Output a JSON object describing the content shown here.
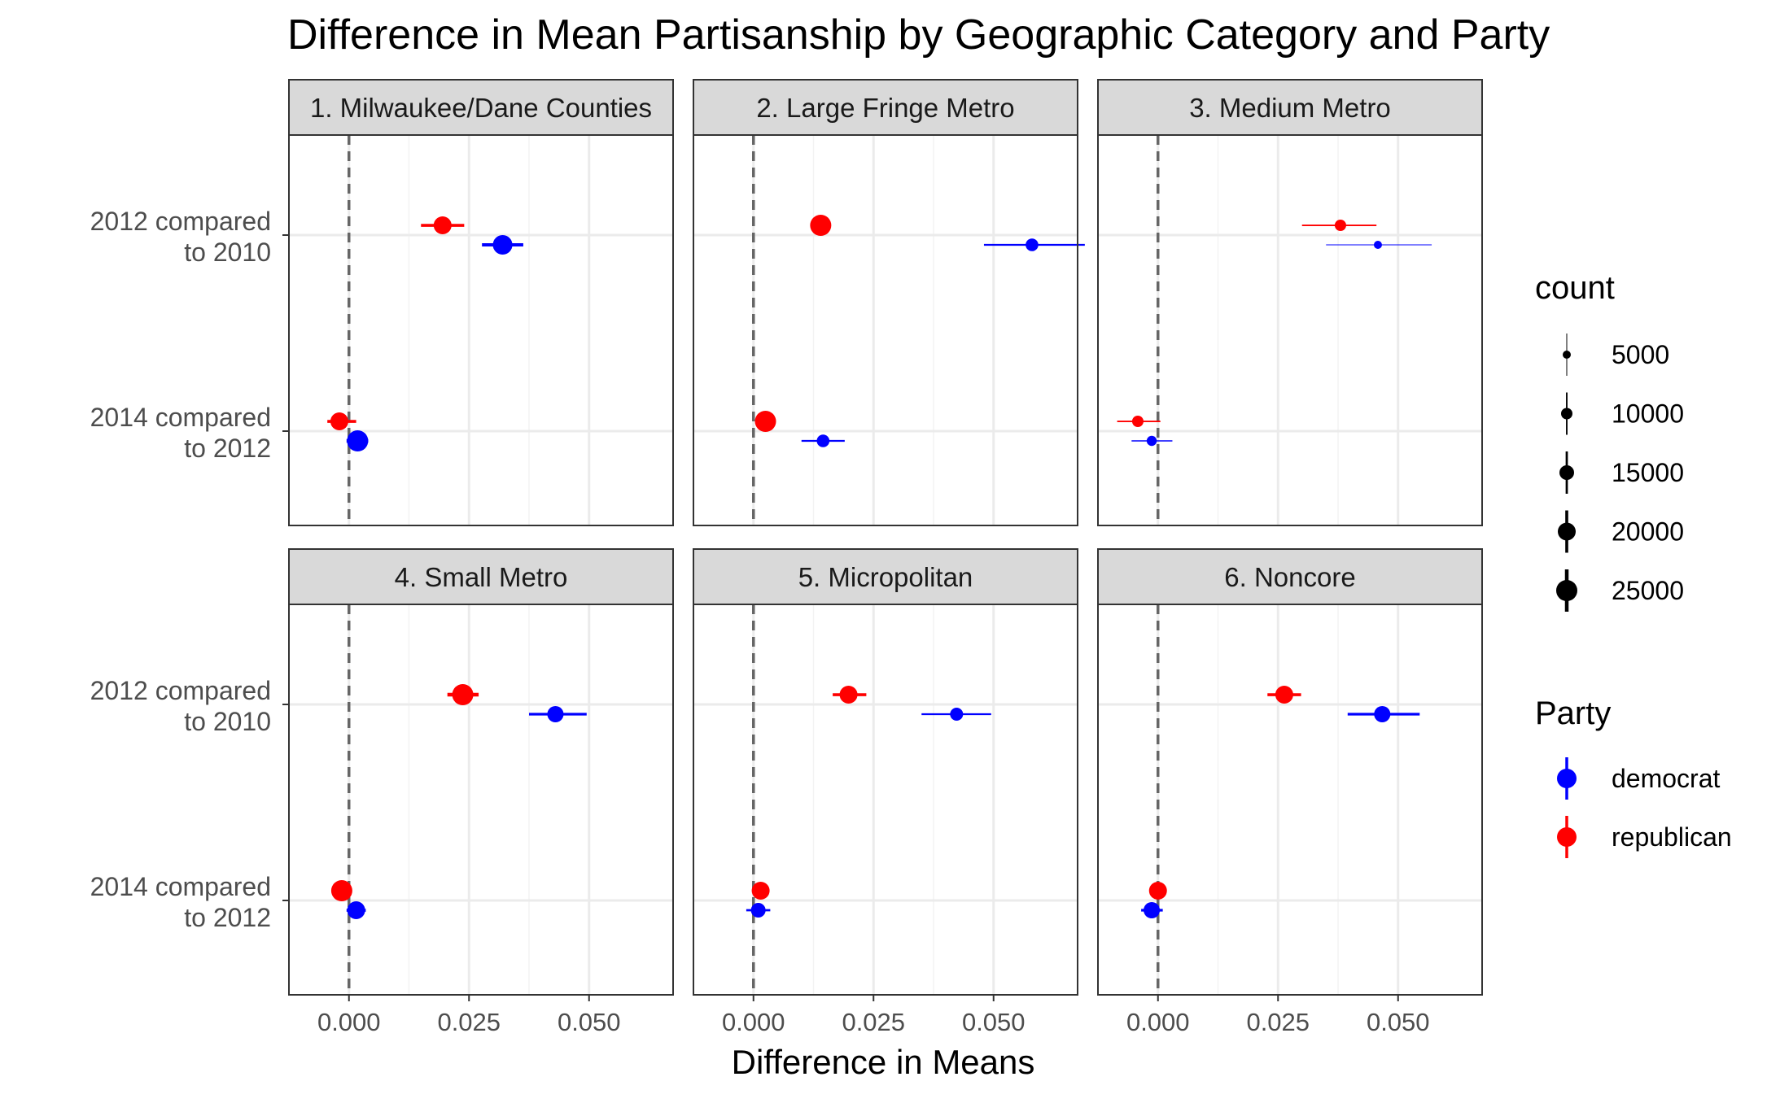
{
  "chart_data": {
    "type": "scatter",
    "variant": "faceted point-range (estimate with interval)",
    "title": "Difference in Mean Partisanship by Geographic Category and Party",
    "xlabel": "Difference in Means",
    "ylabel": "",
    "categories": [
      "2012 compared\nto 2010",
      "2014 compared\nto 2012"
    ],
    "x_ticks": [
      0.0,
      0.025,
      0.05
    ],
    "x_tick_labels": [
      "0.000",
      "0.025",
      "0.050"
    ],
    "xlim": [
      -0.0125,
      0.0675
    ],
    "reference_line": 0,
    "grid": true,
    "facets": [
      {
        "label": "1. Milwaukee/Dane Counties",
        "points": [
          {
            "comparison": "2012 compared\nto 2010",
            "party": "republican",
            "estimate": 0.0195,
            "low": 0.015,
            "high": 0.024,
            "count": 20000
          },
          {
            "comparison": "2012 compared\nto 2010",
            "party": "democrat",
            "estimate": 0.032,
            "low": 0.0277,
            "high": 0.0363,
            "count": 22500
          },
          {
            "comparison": "2014 compared\nto 2012",
            "party": "republican",
            "estimate": -0.002,
            "low": -0.0045,
            "high": 0.0015,
            "count": 20000
          },
          {
            "comparison": "2014 compared\nto 2012",
            "party": "democrat",
            "estimate": 0.0018,
            "low": -0.0005,
            "high": 0.004,
            "count": 25000
          }
        ]
      },
      {
        "label": "2. Large Fringe Metro",
        "points": [
          {
            "comparison": "2012 compared\nto 2010",
            "party": "republican",
            "estimate": 0.014,
            "low": 0.013,
            "high": 0.015,
            "count": 25000
          },
          {
            "comparison": "2012 compared\nto 2010",
            "party": "democrat",
            "estimate": 0.058,
            "low": 0.048,
            "high": 0.069,
            "count": 12000
          },
          {
            "comparison": "2014 compared\nto 2012",
            "party": "republican",
            "estimate": 0.0025,
            "low": 0.0015,
            "high": 0.0035,
            "count": 25000
          },
          {
            "comparison": "2014 compared\nto 2012",
            "party": "democrat",
            "estimate": 0.0145,
            "low": 0.01,
            "high": 0.019,
            "count": 12000
          }
        ]
      },
      {
        "label": "3. Medium Metro",
        "points": [
          {
            "comparison": "2012 compared\nto 2010",
            "party": "republican",
            "estimate": 0.038,
            "low": 0.03,
            "high": 0.0455,
            "count": 10000
          },
          {
            "comparison": "2012 compared\nto 2010",
            "party": "democrat",
            "estimate": 0.0458,
            "low": 0.035,
            "high": 0.057,
            "count": 5000
          },
          {
            "comparison": "2014 compared\nto 2012",
            "party": "republican",
            "estimate": -0.0042,
            "low": -0.0085,
            "high": 0.0005,
            "count": 10000
          },
          {
            "comparison": "2014 compared\nto 2012",
            "party": "democrat",
            "estimate": -0.0013,
            "low": -0.0055,
            "high": 0.003,
            "count": 8000
          }
        ]
      },
      {
        "label": "4. Small Metro",
        "points": [
          {
            "comparison": "2012 compared\nto 2010",
            "party": "republican",
            "estimate": 0.0237,
            "low": 0.0205,
            "high": 0.027,
            "count": 25000
          },
          {
            "comparison": "2012 compared\nto 2010",
            "party": "democrat",
            "estimate": 0.043,
            "low": 0.0375,
            "high": 0.0495,
            "count": 17500
          },
          {
            "comparison": "2014 compared\nto 2012",
            "party": "republican",
            "estimate": -0.0015,
            "low": -0.0025,
            "high": -0.0005,
            "count": 25000
          },
          {
            "comparison": "2014 compared\nto 2012",
            "party": "democrat",
            "estimate": 0.0015,
            "low": -0.0005,
            "high": 0.0035,
            "count": 20000
          }
        ]
      },
      {
        "label": "5. Micropolitan",
        "points": [
          {
            "comparison": "2012 compared\nto 2010",
            "party": "republican",
            "estimate": 0.0198,
            "low": 0.0165,
            "high": 0.0235,
            "count": 20000
          },
          {
            "comparison": "2012 compared\nto 2010",
            "party": "democrat",
            "estimate": 0.0423,
            "low": 0.035,
            "high": 0.0495,
            "count": 12500
          },
          {
            "comparison": "2014 compared\nto 2012",
            "party": "republican",
            "estimate": 0.0015,
            "low": 0.001,
            "high": 0.002,
            "count": 20000
          },
          {
            "comparison": "2014 compared\nto 2012",
            "party": "democrat",
            "estimate": 0.001,
            "low": -0.0015,
            "high": 0.0035,
            "count": 15000
          }
        ]
      },
      {
        "label": "6. Noncore",
        "points": [
          {
            "comparison": "2012 compared\nto 2010",
            "party": "republican",
            "estimate": 0.0263,
            "low": 0.0228,
            "high": 0.0298,
            "count": 20000
          },
          {
            "comparison": "2012 compared\nto 2010",
            "party": "democrat",
            "estimate": 0.0467,
            "low": 0.0395,
            "high": 0.0545,
            "count": 17500
          },
          {
            "comparison": "2014 compared\nto 2012",
            "party": "republican",
            "estimate": 0.0,
            "low": -0.001,
            "high": 0.001,
            "count": 20000
          },
          {
            "comparison": "2014 compared\nto 2012",
            "party": "democrat",
            "estimate": -0.0013,
            "low": -0.0035,
            "high": 0.001,
            "count": 17500
          }
        ]
      }
    ],
    "legend": {
      "count": {
        "title": "count",
        "values": [
          5000,
          10000,
          15000,
          20000,
          25000
        ],
        "labels": [
          "5000",
          "10000",
          "15000",
          "20000",
          "25000"
        ]
      },
      "party": {
        "title": "Party",
        "entries": [
          {
            "name": "democrat",
            "color": "#0000ff"
          },
          {
            "name": "republican",
            "color": "#ff0000"
          }
        ]
      },
      "placement": "right"
    },
    "colors": {
      "democrat": "#0000ff",
      "republican": "#ff0000",
      "strip": "#d9d9d9",
      "grid": "#ebebeb",
      "reference": "#666666"
    }
  }
}
